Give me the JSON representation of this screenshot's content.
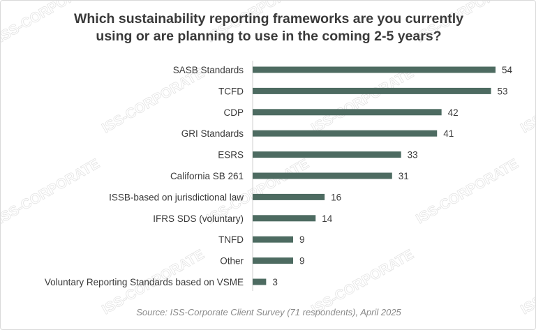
{
  "chart_data": {
    "type": "bar",
    "orientation": "horizontal",
    "title": "Which sustainability reporting frameworks are you currently using or are planning to use in the coming 2-5 years?",
    "title_lines": [
      "Which sustainability reporting frameworks are you currently",
      "using or are planning to use in the coming 2-5 years?"
    ],
    "categories": [
      "SASB Standards",
      "TCFD",
      "CDP",
      "GRI Standards",
      "ESRS",
      "California SB 261",
      "ISSB-based on jurisdictional law",
      "IFRS SDS (voluntary)",
      "TNFD",
      "Other",
      "Voluntary Reporting Standards based on VSME"
    ],
    "values": [
      54,
      53,
      42,
      41,
      33,
      31,
      16,
      14,
      9,
      9,
      3
    ],
    "xlim": [
      0,
      54
    ],
    "grid": false,
    "bar_color": "#4d6b61",
    "source": "Source: ISS-Corporate Client Survey (71 respondents), April 2025"
  },
  "watermark": {
    "text": "ISS-CORPORATE",
    "color": "#d8d8d8"
  }
}
